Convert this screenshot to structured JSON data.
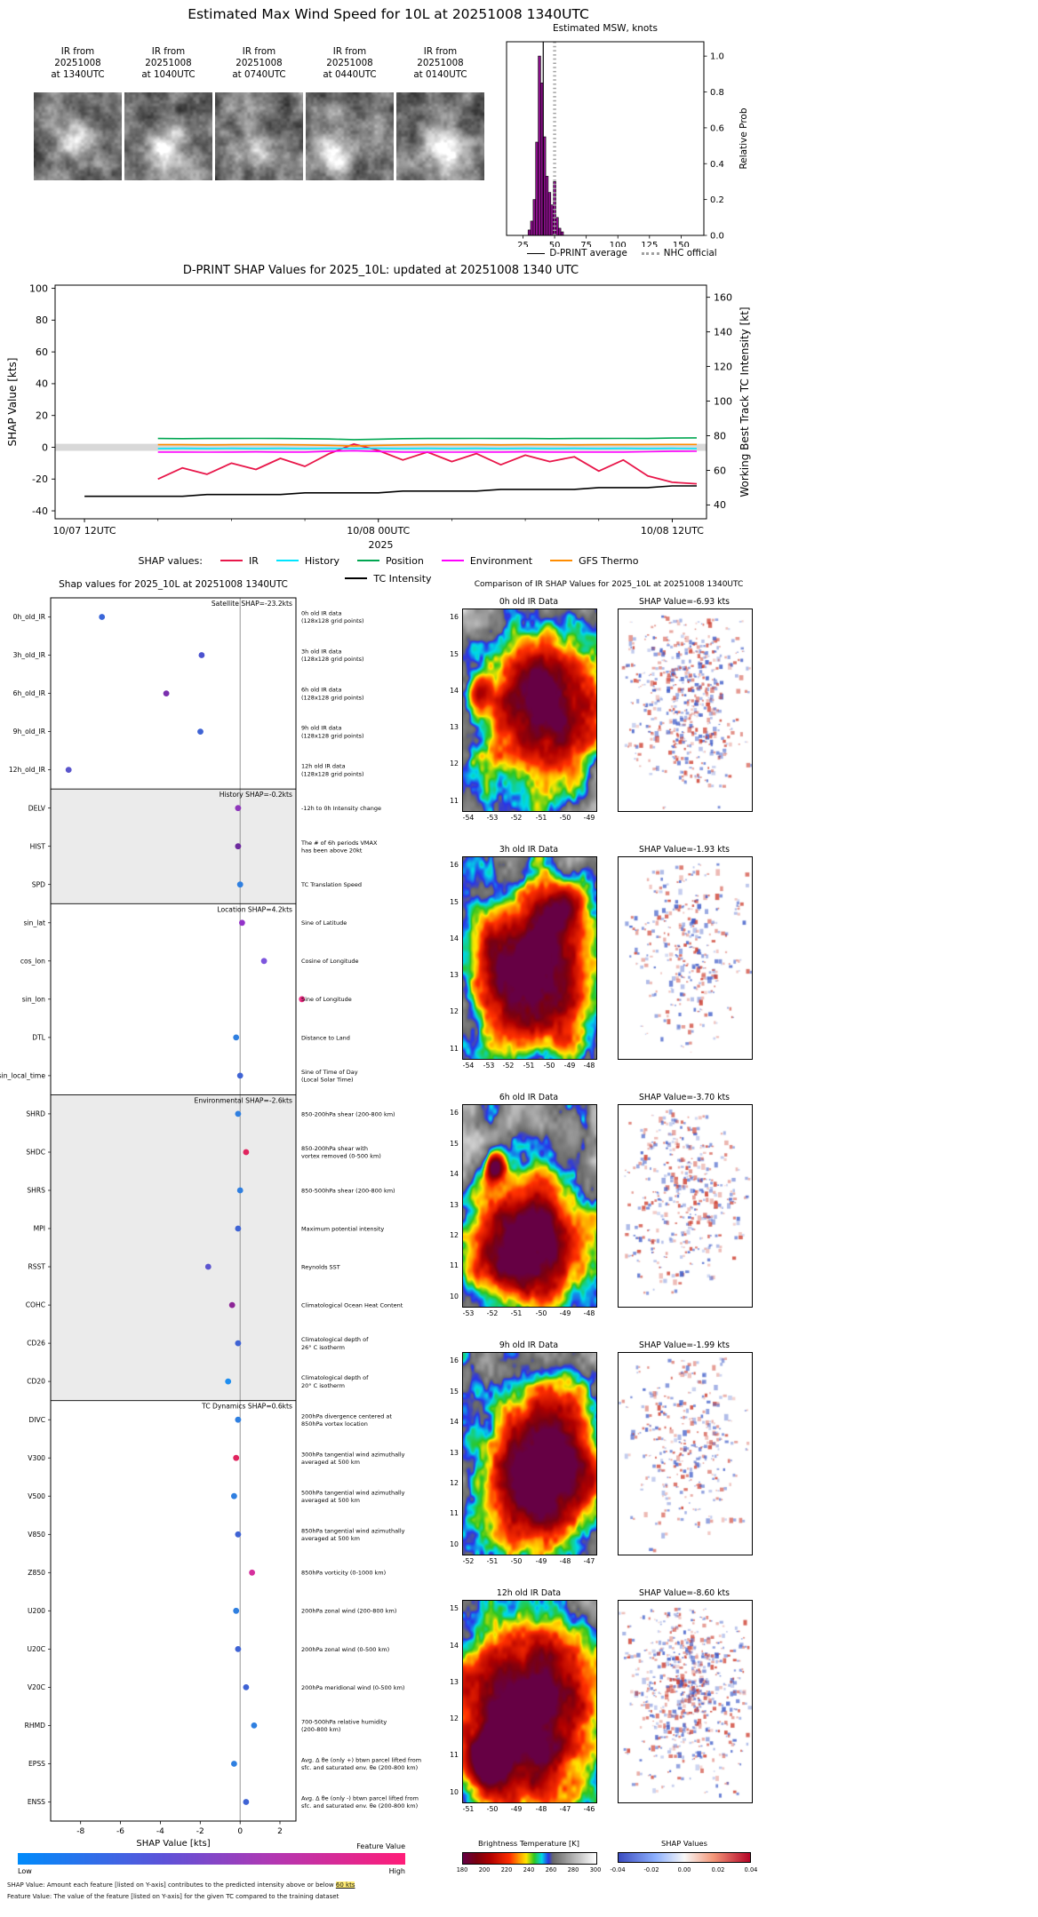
{
  "header": {
    "title": "Estimated Max Wind Speed for 10L at 20251008 1340UTC"
  },
  "ir_strip": {
    "thumbnails": [
      {
        "lines": [
          "IR from",
          "20251008",
          "at 1340UTC"
        ]
      },
      {
        "lines": [
          "IR from",
          "20251008",
          "at 1040UTC"
        ]
      },
      {
        "lines": [
          "IR from",
          "20251008",
          "at 0740UTC"
        ]
      },
      {
        "lines": [
          "IR from",
          "20251008",
          "at 0440UTC"
        ]
      },
      {
        "lines": [
          "IR from",
          "20251008",
          "at 0140UTC"
        ]
      }
    ]
  },
  "chart_data": [
    {
      "id": "msw_histogram",
      "type": "bar",
      "title": "Estimated MSW, knots",
      "ylabel": "Relative Prob",
      "xlim": [
        12,
        168
      ],
      "ylim": [
        0,
        1.08
      ],
      "xticks": [
        25,
        50,
        75,
        100,
        125,
        150
      ],
      "yticks": [
        "0.0",
        "0.2",
        "0.4",
        "0.6",
        "0.8",
        "1.0"
      ],
      "bin_width": 2,
      "bin_centers": [
        30,
        32,
        34,
        36,
        38,
        40,
        42,
        44,
        46,
        48,
        50,
        52,
        54,
        56
      ],
      "values": [
        0.03,
        0.08,
        0.2,
        0.52,
        1.0,
        0.85,
        0.55,
        0.33,
        0.24,
        0.17,
        0.3,
        0.1,
        0.04,
        0.02
      ],
      "bar_color": "#8a0f8a",
      "dprint_average_kts": 41,
      "nhc_official_kts": 50,
      "legend": [
        {
          "label": "D-PRINT average",
          "style": "solid"
        },
        {
          "label": "NHC official",
          "style": "dotted"
        }
      ]
    },
    {
      "id": "shap_timeseries",
      "type": "line",
      "title": "D-PRINT SHAP Values for 2025_10L: updated at 20251008 1340 UTC",
      "ylabel_left": "SHAP Value [kts]",
      "ylabel_right": "Working Best Track TC Intensity [kt]",
      "xlabel_year": "2025",
      "xlim_hours": [
        -1.2,
        25.4
      ],
      "ylim_left": [
        -45,
        102
      ],
      "yticks_left": [
        -40,
        -20,
        0,
        20,
        40,
        60,
        80,
        100
      ],
      "ylim_right": [
        32,
        167
      ],
      "yticks_right": [
        40,
        60,
        80,
        100,
        120,
        140,
        160
      ],
      "xticks": [
        {
          "t": 0,
          "label": "10/07 12UTC"
        },
        {
          "t": 12,
          "label": "10/08 00UTC"
        },
        {
          "t": 24,
          "label": "10/08 12UTC"
        }
      ],
      "legend_label": "SHAP values:",
      "zero_band": {
        "color": "#d8d8d8",
        "halfwidth": 2.2
      },
      "series": [
        {
          "name": "IR",
          "color": "#e8174a",
          "axis": "left",
          "t_start": 3,
          "dt": 1,
          "values": [
            -20,
            -13,
            -17,
            -10,
            -14,
            -7,
            -12,
            -4,
            2,
            -2,
            -8,
            -3,
            -9,
            -4,
            -11,
            -5,
            -9,
            -6,
            -15,
            -8,
            -18,
            -22,
            -23
          ]
        },
        {
          "name": "History",
          "color": "#00e5ff",
          "axis": "left",
          "t_start": 3,
          "dt": 1,
          "values": [
            -0.8,
            -0.7,
            -0.8,
            -0.7,
            -0.8,
            -0.7,
            -0.8,
            -0.7,
            -0.8,
            -0.7,
            -0.8,
            -0.7,
            -0.8,
            -0.7,
            -0.8,
            -0.7,
            -0.8,
            -0.7,
            -0.8,
            -0.7,
            -0.8,
            -0.7,
            -0.8
          ]
        },
        {
          "name": "Position",
          "color": "#00a651",
          "axis": "left",
          "t_start": 3,
          "dt": 1,
          "values": [
            5.5,
            5.4,
            5.5,
            5.5,
            5.6,
            5.5,
            5.4,
            5.2,
            4.8,
            5.1,
            5.4,
            5.5,
            5.5,
            5.6,
            5.5,
            5.5,
            5.4,
            5.5,
            5.5,
            5.6,
            5.5,
            5.8,
            5.9
          ]
        },
        {
          "name": "Environment",
          "color": "#ff00ff",
          "axis": "left",
          "t_start": 3,
          "dt": 1,
          "values": [
            -3,
            -3,
            -3.1,
            -3,
            -2.9,
            -3,
            -3,
            -2.6,
            -2.2,
            -2.7,
            -3,
            -3,
            -3.1,
            -3,
            -3,
            -2.9,
            -3,
            -3,
            -3,
            -3,
            -2.8,
            -2.6,
            -2.5
          ]
        },
        {
          "name": "GFS Thermo",
          "color": "#ff8c00",
          "axis": "left",
          "t_start": 3,
          "dt": 1,
          "values": [
            1.6,
            1.6,
            1.5,
            1.6,
            1.7,
            1.6,
            1.5,
            1.2,
            0.8,
            1.2,
            1.5,
            1.6,
            1.6,
            1.6,
            1.5,
            1.6,
            1.6,
            1.5,
            1.6,
            1.6,
            1.7,
            1.8,
            1.8
          ]
        },
        {
          "name": "TC Intensity",
          "color": "#000000",
          "axis": "right",
          "t_start": 0,
          "dt": 1,
          "values": [
            45,
            45,
            45,
            45,
            45,
            46,
            46,
            46,
            46,
            47,
            47,
            47,
            47,
            48,
            48,
            48,
            48,
            49,
            49,
            49,
            49,
            50,
            50,
            50,
            51,
            51
          ]
        }
      ]
    },
    {
      "id": "shap_features",
      "type": "scatter",
      "title": "Shap values for 2025_10L at 20251008 1340UTC",
      "xlabel": "SHAP Value [kts]",
      "xlim": [
        -9.5,
        2.8
      ],
      "xticks": [
        -8,
        -6,
        -4,
        -2,
        0,
        2
      ],
      "groups": [
        {
          "label": "Satellite SHAP=-23.2kts",
          "shade": false
        },
        {
          "label": "History SHAP=-0.2kts",
          "shade": true
        },
        {
          "label": "Location SHAP=4.2kts",
          "shade": false
        },
        {
          "label": "Environmental SHAP=-2.6kts",
          "shade": true
        },
        {
          "label": "TC Dynamics SHAP=0.6kts",
          "shade": false
        }
      ],
      "features": [
        {
          "name": "0h_old_IR",
          "group": 0,
          "shap": -6.93,
          "dot_color": "#3a66d9",
          "desc": [
            "0h old IR data",
            "(128x128 grid points)"
          ]
        },
        {
          "name": "3h_old_IR",
          "group": 0,
          "shap": -1.93,
          "dot_color": "#4b52cf",
          "desc": [
            "3h old IR data",
            "(128x128 grid points)"
          ]
        },
        {
          "name": "6h_old_IR",
          "group": 0,
          "shap": -3.7,
          "dot_color": "#7a2fae",
          "desc": [
            "6h old IR data",
            "(128x128 grid points)"
          ]
        },
        {
          "name": "9h_old_IR",
          "group": 0,
          "shap": -1.99,
          "dot_color": "#3f63d4",
          "desc": [
            "9h old IR data",
            "(128x128 grid points)"
          ]
        },
        {
          "name": "12h_old_IR",
          "group": 0,
          "shap": -8.6,
          "dot_color": "#5a55cc",
          "desc": [
            "12h old IR data",
            "(128x128 grid points)"
          ]
        },
        {
          "name": "DELV",
          "group": 1,
          "shap": -0.1,
          "dot_color": "#8e36bb",
          "desc": [
            "-12h to 0h Intensity change"
          ]
        },
        {
          "name": "HIST",
          "group": 1,
          "shap": -0.1,
          "dot_color": "#6d2a9e",
          "desc": [
            "The # of 6h periods VMAX",
            "has been above 20kt"
          ]
        },
        {
          "name": "SPD",
          "group": 1,
          "shap": 0.0,
          "dot_color": "#2f7fe0",
          "desc": [
            "TC Translation Speed"
          ]
        },
        {
          "name": "sin_lat",
          "group": 2,
          "shap": 0.1,
          "dot_color": "#9333c9",
          "desc": [
            "Sine of Latitude"
          ]
        },
        {
          "name": "cos_lon",
          "group": 2,
          "shap": 1.2,
          "dot_color": "#7d55dd",
          "desc": [
            "Cosine of Longitude"
          ]
        },
        {
          "name": "sin_lon",
          "group": 2,
          "shap": 3.1,
          "dot_color": "#ee2d85",
          "desc": [
            "Sine of Longitude"
          ]
        },
        {
          "name": "DTL",
          "group": 2,
          "shap": -0.2,
          "dot_color": "#2f7fe0",
          "desc": [
            "Distance to Land"
          ]
        },
        {
          "name": "sin_local_time",
          "group": 2,
          "shap": 0.0,
          "dot_color": "#3f63d4",
          "desc": [
            "Sine of Time of Day",
            "(Local Solar Time)"
          ]
        },
        {
          "name": "SHRD",
          "group": 3,
          "shap": -0.1,
          "dot_color": "#2f7fe0",
          "desc": [
            "850-200hPa shear (200-800 km)"
          ]
        },
        {
          "name": "SHDC",
          "group": 3,
          "shap": 0.3,
          "dot_color": "#e0245e",
          "desc": [
            "850-200hPa shear with",
            "vortex removed (0-500 km)"
          ]
        },
        {
          "name": "SHRS",
          "group": 3,
          "shap": 0.0,
          "dot_color": "#2f7fe0",
          "desc": [
            "850-500hPa shear (200-800 km)"
          ]
        },
        {
          "name": "MPI",
          "group": 3,
          "shap": -0.1,
          "dot_color": "#3f63d4",
          "desc": [
            "Maximum potential intensity"
          ]
        },
        {
          "name": "RSST",
          "group": 3,
          "shap": -1.6,
          "dot_color": "#5c55cf",
          "desc": [
            "Reynolds SST"
          ]
        },
        {
          "name": "COHC",
          "group": 3,
          "shap": -0.4,
          "dot_color": "#8c2596",
          "desc": [
            "Climatological Ocean Heat Content"
          ]
        },
        {
          "name": "CD26",
          "group": 3,
          "shap": -0.1,
          "dot_color": "#3f63d4",
          "desc": [
            "Climatological depth of",
            "26° C isotherm"
          ]
        },
        {
          "name": "CD20",
          "group": 3,
          "shap": -0.6,
          "dot_color": "#1f8ef0",
          "desc": [
            "Climatological depth of",
            "20° C isotherm"
          ]
        },
        {
          "name": "DIVC",
          "group": 4,
          "shap": -0.1,
          "dot_color": "#2f7fe0",
          "desc": [
            "200hPa divergence centered at",
            "850hPa vortex location"
          ]
        },
        {
          "name": "V300",
          "group": 4,
          "shap": -0.2,
          "dot_color": "#e0245e",
          "desc": [
            "300hPa tangential wind azimuthally",
            "averaged at 500 km"
          ]
        },
        {
          "name": "V500",
          "group": 4,
          "shap": -0.3,
          "dot_color": "#2f7fe0",
          "desc": [
            "500hPa tangential wind azimuthally",
            "averaged at 500 km"
          ]
        },
        {
          "name": "V850",
          "group": 4,
          "shap": -0.1,
          "dot_color": "#3f63d4",
          "desc": [
            "850hPa tangential wind azimuthally",
            "averaged at 500 km"
          ]
        },
        {
          "name": "Z850",
          "group": 4,
          "shap": 0.6,
          "dot_color": "#d62f9d",
          "desc": [
            "850hPa vorticity (0-1000 km)"
          ]
        },
        {
          "name": "U200",
          "group": 4,
          "shap": -0.2,
          "dot_color": "#2f7fe0",
          "desc": [
            "200hPa zonal wind (200-800 km)"
          ]
        },
        {
          "name": "U20C",
          "group": 4,
          "shap": -0.1,
          "dot_color": "#3f63d4",
          "desc": [
            "200hPa zonal wind (0-500 km)"
          ]
        },
        {
          "name": "V20C",
          "group": 4,
          "shap": 0.3,
          "dot_color": "#3f63d4",
          "desc": [
            "200hPa meridional wind (0-500 km)"
          ]
        },
        {
          "name": "RHMD",
          "group": 4,
          "shap": 0.7,
          "dot_color": "#2f7fe0",
          "desc": [
            "700-500hPa relative humidity",
            "(200-800 km)"
          ]
        },
        {
          "name": "EPSS",
          "group": 4,
          "shap": -0.3,
          "dot_color": "#2f7fe0",
          "desc": [
            "Avg. Δ θe (only +) btwn parcel lifted from",
            "sfc. and saturated env. θe (200-800 km)"
          ]
        },
        {
          "name": "ENSS",
          "group": 4,
          "shap": 0.3,
          "dot_color": "#3f63d4",
          "desc": [
            "Avg. Δ θe (only -) btwn parcel lifted from",
            "sfc. and saturated env. θe (200-800 km)"
          ]
        }
      ],
      "colorbar": {
        "label": "Feature Value",
        "low": "Low",
        "high": "High"
      },
      "footnotes": {
        "shap_prefix": "SHAP Value: Amount each feature [listed on Y-axis] contributes to the predicted intensity above or below ",
        "shap_highlight": "60 kts",
        "feature_line": "Feature Value: The value of the feature [listed on Y-axis] for the given TC compared to the training dataset"
      }
    },
    {
      "id": "ir_shap_comparison",
      "type": "heatmap",
      "title": "Comparison of IR SHAP Values for 2025_10L at 20251008 1340UTC",
      "rows": [
        {
          "ir_title": "0h old IR Data",
          "shap_title": "SHAP Value=-6.93 kts",
          "shap_kts": -6.93,
          "lat_ticks": [
            16,
            15,
            14,
            13,
            12,
            11
          ],
          "lon_ticks": [
            -54,
            -53,
            -52,
            -51,
            -50,
            -49
          ]
        },
        {
          "ir_title": "3h old IR Data",
          "shap_title": "SHAP Value=-1.93 kts",
          "shap_kts": -1.93,
          "lat_ticks": [
            16,
            15,
            14,
            13,
            12,
            11
          ],
          "lon_ticks": [
            -54,
            -53,
            -52,
            -51,
            -50,
            -49,
            -48
          ]
        },
        {
          "ir_title": "6h old IR Data",
          "shap_title": "SHAP Value=-3.70 kts",
          "shap_kts": -3.7,
          "lat_ticks": [
            16,
            15,
            14,
            13,
            12,
            11,
            10
          ],
          "lon_ticks": [
            -53,
            -52,
            -51,
            -50,
            -49,
            -48
          ]
        },
        {
          "ir_title": "9h old IR Data",
          "shap_title": "SHAP Value=-1.99 kts",
          "shap_kts": -1.99,
          "lat_ticks": [
            16,
            15,
            14,
            13,
            12,
            11,
            10
          ],
          "lon_ticks": [
            -52,
            -51,
            -50,
            -49,
            -48,
            -47
          ]
        },
        {
          "ir_title": "12h old IR Data",
          "shap_title": "SHAP Value=-8.60 kts",
          "shap_kts": -8.6,
          "lat_ticks": [
            15,
            14,
            13,
            12,
            11,
            10
          ],
          "lon_ticks": [
            -51,
            -50,
            -49,
            -48,
            -47,
            -46
          ]
        }
      ],
      "colorbars": {
        "brightness": {
          "label": "Brightness Temperature [K]",
          "ticks": [
            180,
            200,
            220,
            240,
            260,
            280,
            300
          ]
        },
        "shap": {
          "label": "SHAP Values",
          "ticks": [
            "-0.04",
            "-0.02",
            "0.00",
            "0.02",
            "0.04"
          ]
        }
      }
    }
  ]
}
